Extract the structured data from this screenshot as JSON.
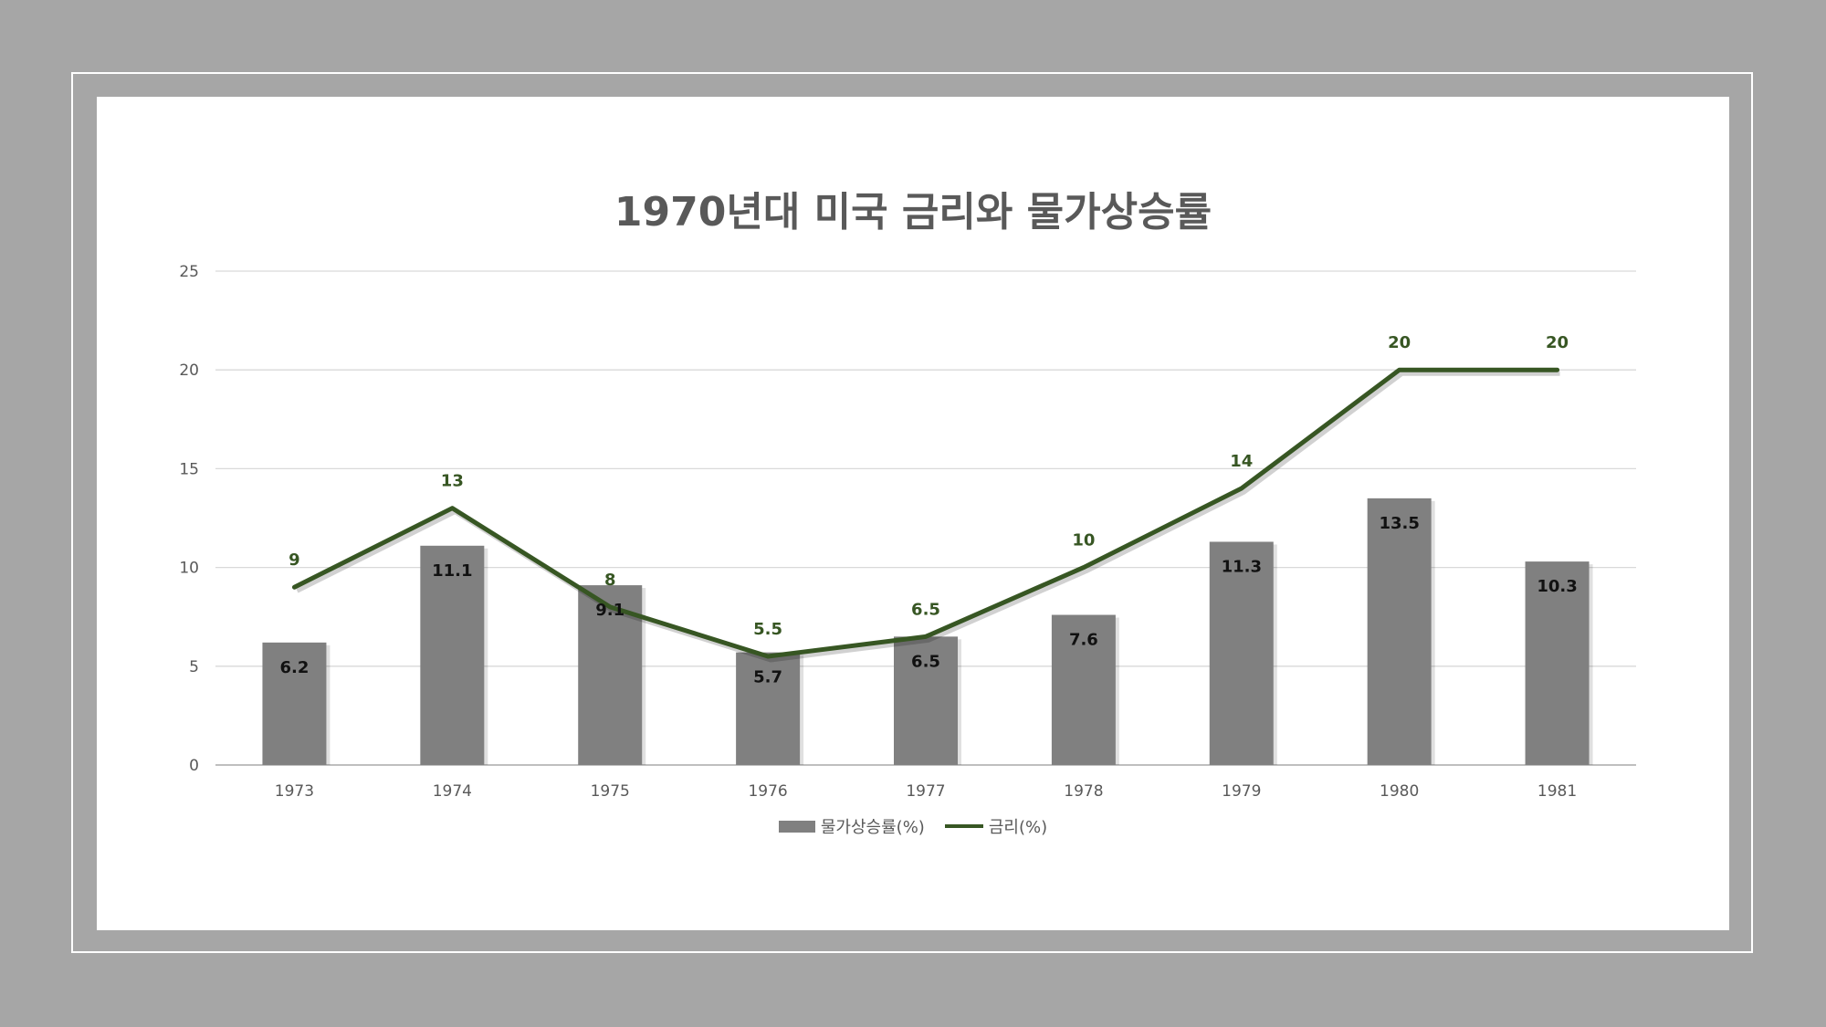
{
  "chart_data": {
    "type": "bar",
    "title": "1970년대 미국 금리와 물가상승률",
    "categories": [
      "1973",
      "1974",
      "1975",
      "1976",
      "1977",
      "1978",
      "1979",
      "1980",
      "1981"
    ],
    "series": [
      {
        "name": "물가상승률(%)",
        "type": "bar",
        "values": [
          6.2,
          11.1,
          9.1,
          5.7,
          6.5,
          7.6,
          11.3,
          13.5,
          10.3
        ],
        "color": "#808080"
      },
      {
        "name": "금리(%)",
        "type": "line",
        "values": [
          9,
          13,
          8,
          5.5,
          6.5,
          10,
          14,
          20,
          20
        ],
        "color": "#375623"
      }
    ],
    "ylim": [
      0,
      25
    ],
    "yticks": [
      0,
      5,
      10,
      15,
      20,
      25
    ],
    "grid": true,
    "legend": "bottom"
  },
  "colors": {
    "background": "#a6a6a6",
    "panel": "#ffffff",
    "gridline": "#d9d9d9",
    "axis_text": "#595959"
  }
}
